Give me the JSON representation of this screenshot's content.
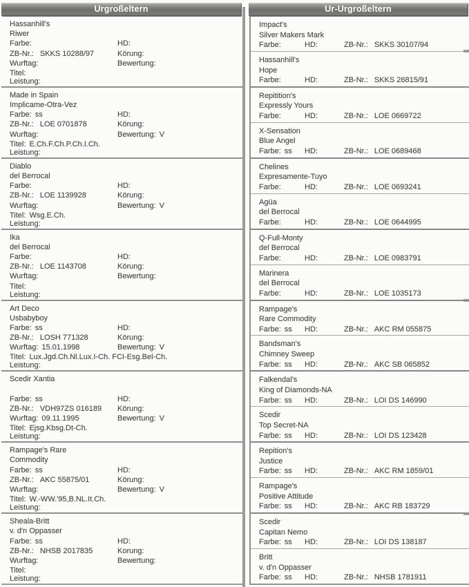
{
  "headers": {
    "left": "Urgroßeltern",
    "right": "Ur-Urgroßeltern"
  },
  "labels": {
    "farbe": "Farbe:",
    "hd": "HD:",
    "zb": "ZB-Nr.:",
    "koerung": "Körung:",
    "wurftag": "Wurftag:",
    "bewertung": "Bewertung:",
    "titel": "Titel:",
    "leistung": "Leistung:"
  },
  "colors": {
    "header_bg": "#7a7a78",
    "header_text": "#ffffff",
    "rule": "#8f8f8d",
    "text": "#474747"
  },
  "left_blocks": [
    {
      "name1": "Hassanhill's",
      "name2": "Riwer",
      "farbe": "",
      "zb": "SKKS 10288/97",
      "wurftag": "",
      "titel": "",
      "bewertung": "",
      "koerung_label": "Körung:"
    },
    {
      "name1": "Made in Spain",
      "name2": "Implicame-Otra-Vez",
      "farbe": "ss",
      "zb": "LOE 0701878",
      "wurftag": "",
      "titel": "E.Ch.F.Ch.P.Ch.I.Ch.",
      "bewertung": "V",
      "koerung_label": "Körung:"
    },
    {
      "name1": "Diablo",
      "name2": "del Berrocal",
      "farbe": "",
      "zb": "LOE 1139928",
      "wurftag": "",
      "titel": "Wsg.E.Ch.",
      "bewertung": "V",
      "koerung_label": "Körung:"
    },
    {
      "name1": "Ika",
      "name2": "del Berrocal",
      "farbe": "",
      "zb": "LOE 1143708",
      "wurftag": "",
      "titel": "",
      "bewertung": "",
      "koerung_label": "Körung:"
    },
    {
      "name1": "Art Deco",
      "name2": "Usbabyboy",
      "farbe": "ss",
      "zb": "LOSH 771328",
      "wurftag": "15.01.1998",
      "titel": "Lux.Jgd.Ch.Nl.Lux.I-Ch. FCI-Esg.Bel-Ch.",
      "bewertung": "V",
      "koerung_label": "Körung:"
    },
    {
      "name1": "Scedir Xantia",
      "name2": "",
      "farbe": "ss",
      "zb": "VDH97ZS 016189",
      "wurftag": "09.11.1995",
      "titel": "Ejsg.Kbsg.Dt-Ch.",
      "bewertung": "V",
      "koerung_label": "Körung:"
    },
    {
      "name1": "Rampage's Rare",
      "name2": "Commodity",
      "farbe": "ss",
      "zb": "AKC 55875/01",
      "wurftag": "",
      "titel": "W.-WW.'95,B.NL.It.Ch.",
      "bewertung": "V",
      "koerung_label": "Körung:"
    },
    {
      "name1": "Sheala-Britt",
      "name2": "v. d'n Oppasser",
      "farbe": "ss",
      "zb": "NHSB 2017835",
      "wurftag": "",
      "titel": "",
      "bewertung": "",
      "koerung_label": "Korung:"
    }
  ],
  "right_blocks": [
    {
      "name1": "Impact's",
      "name2": "Silver Makers Mark",
      "farbe": "",
      "zb": "SKKS 30107/94"
    },
    {
      "name1": "Hassanhill's",
      "name2": "Hope",
      "farbe": "",
      "zb": "SKKS 26815/91"
    },
    {
      "name1": "Repitition's",
      "name2": "Expressly Yours",
      "farbe": "",
      "zb": "LOE 0669722"
    },
    {
      "name1": "X-Sensation",
      "name2": "Blue Angel",
      "farbe": "ss",
      "zb": "LOE 0689468"
    },
    {
      "name1": "Chelines",
      "name2": "Expresamente-Tuyo",
      "farbe": "",
      "zb": "LOE 0693241"
    },
    {
      "name1": "Agüa",
      "name2": "del Berrocal",
      "farbe": "",
      "zb": "LOE 0644995"
    },
    {
      "name1": "Q-Full-Monty",
      "name2": "del Berrocal",
      "farbe": "",
      "zb": "LOE 0983791"
    },
    {
      "name1": "Marinera",
      "name2": "del Berrocal",
      "farbe": "",
      "zb": "LOE 1035173"
    },
    {
      "name1": "Rampage's",
      "name2": "Rare Commodity",
      "farbe": "ss",
      "zb": "AKC RM 055875"
    },
    {
      "name1": "Bandsman's",
      "name2": "Chimney Sweep",
      "farbe": "ss",
      "zb": "AKC SB 065852"
    },
    {
      "name1": "Falkendal's",
      "name2": "King of Diamonds-NA",
      "farbe": "ss",
      "zb": "LOI DS 146990"
    },
    {
      "name1": "Scedir",
      "name2": "Top Secret-NA",
      "farbe": "ss",
      "zb": "LOI DS 123428"
    },
    {
      "name1": "Repition's",
      "name2": "Justice",
      "farbe": "ss",
      "zb": "AKC RM 1859/01"
    },
    {
      "name1": "Rampage's",
      "name2": "Positive Attitude",
      "farbe": "ss",
      "zb": "AKC RB 183729"
    },
    {
      "name1": "Scedir",
      "name2": "Capitan Nemo",
      "farbe": "ss",
      "zb": "LOI DS 138187"
    },
    {
      "name1": "Britt",
      "name2": "v. d'n Oppasser",
      "farbe": "ss",
      "zb": "NHSB 1781911"
    }
  ]
}
